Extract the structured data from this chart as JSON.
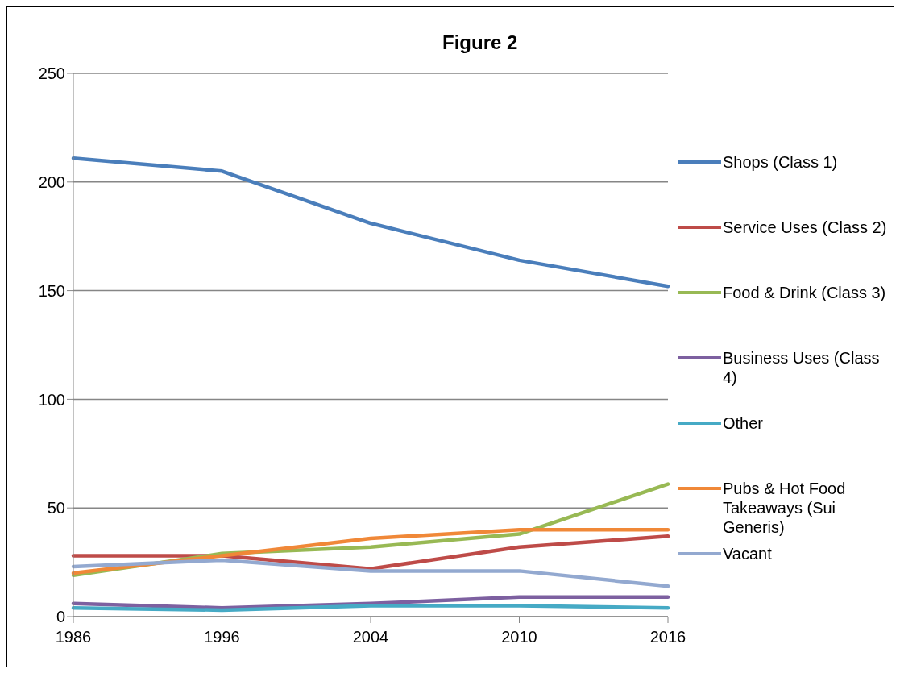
{
  "chart_data": {
    "type": "line",
    "title": "Figure 2",
    "categories": [
      "1986",
      "1996",
      "2004",
      "2010",
      "2016"
    ],
    "series": [
      {
        "name": "Shops (Class 1)",
        "color": "#4a7ebb",
        "values": [
          211,
          205,
          181,
          164,
          152
        ]
      },
      {
        "name": "Service Uses (Class 2)",
        "color": "#be4b48",
        "values": [
          28,
          28,
          22,
          32,
          37
        ]
      },
      {
        "name": "Food & Drink (Class 3)",
        "color": "#98b954",
        "values": [
          19,
          29,
          32,
          38,
          61
        ]
      },
      {
        "name": "Business Uses (Class 4)",
        "color": "#7d60a0",
        "values": [
          6,
          4,
          6,
          9,
          9
        ]
      },
      {
        "name": "Other",
        "color": "#46aac5",
        "values": [
          4,
          3,
          5,
          5,
          4
        ]
      },
      {
        "name": "Pubs & Hot Food Takeaways (Sui Generis)",
        "color": "#f08838",
        "values": [
          20,
          28,
          36,
          40,
          40
        ]
      },
      {
        "name": "Vacant",
        "color": "#93a9d0",
        "values": [
          23,
          26,
          21,
          21,
          14
        ]
      }
    ],
    "ylim": [
      0,
      250
    ],
    "yticks": [
      0,
      50,
      100,
      150,
      200,
      250
    ],
    "grid": "y",
    "legend": "right",
    "marker": "none",
    "line_style": "solid"
  }
}
